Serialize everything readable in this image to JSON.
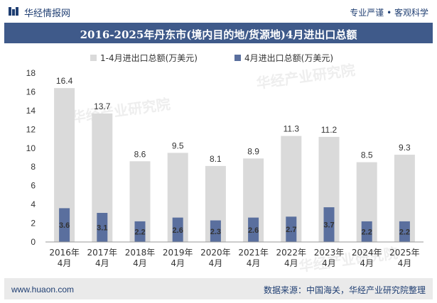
{
  "header": {
    "brand": "华经情报网",
    "tagline": "专业严谨 • 客观科学"
  },
  "title": "2016-2025年丹东市(境内目的地/货源地)4月进出口总额",
  "footer": {
    "website": "www.huaon.com",
    "source": "数据来源：中国海关，华经产业研究院整理"
  },
  "watermark": {
    "cn": "华经产业研究院",
    "url": "www.huaon.com"
  },
  "colors": {
    "header_band": "#3f5a8a",
    "series_total": "#dadada",
    "series_april": "#5a6f9e"
  },
  "chart_data": {
    "type": "bar",
    "categories": [
      "2016年\n4月",
      "2017年\n4月",
      "2018年\n4月",
      "2019年\n4月",
      "2020年\n4月",
      "2021年\n4月",
      "2022年\n4月",
      "2023年\n4月",
      "2024年\n4月",
      "2025年\n4月"
    ],
    "series": [
      {
        "name": "1-4月进出口总额(万美元)",
        "values": [
          16.4,
          13.7,
          8.6,
          9.5,
          8.1,
          8.9,
          11.3,
          11.2,
          8.5,
          9.3
        ]
      },
      {
        "name": "4月进出口总额(万美元)",
        "values": [
          3.6,
          3.1,
          2.2,
          2.6,
          2.3,
          2.6,
          2.7,
          3.7,
          2.2,
          2.2
        ]
      }
    ],
    "ylim": [
      0,
      18
    ],
    "yticks": [
      0,
      2,
      4,
      6,
      8,
      10,
      12,
      14,
      16,
      18
    ],
    "legend": "top-center",
    "grid": false
  }
}
